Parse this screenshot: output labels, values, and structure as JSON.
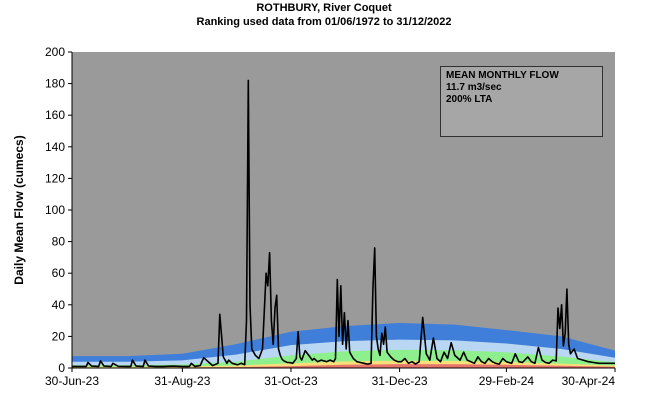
{
  "chart_data": {
    "type": "line",
    "title": "ROTHBURY, River Coquet",
    "subtitle": "Ranking used data from 01/06/1972 to 31/12/2022",
    "xlabel": "",
    "ylabel": "Daily Mean Flow (cumecs)",
    "ylim": [
      0,
      200
    ],
    "yticks": [
      0,
      20,
      40,
      60,
      80,
      100,
      120,
      140,
      160,
      180,
      200
    ],
    "xlim": [
      "2023-06-30",
      "2024-04-30"
    ],
    "xtick_labels": [
      "30-Jun-23",
      "31-Aug-23",
      "31-Oct-23",
      "31-Dec-23",
      "29-Feb-24",
      "30-Apr-24"
    ],
    "xtick_dates": [
      "2023-06-30",
      "2023-08-31",
      "2023-10-31",
      "2023-12-31",
      "2024-02-29",
      "2024-04-30"
    ],
    "background_color": "#9a9a9a",
    "line_color": "#000000",
    "grid": false,
    "bands": {
      "dates": [
        "2023-06-30",
        "2023-07-31",
        "2023-08-31",
        "2023-09-30",
        "2023-10-31",
        "2023-11-30",
        "2023-12-31",
        "2024-01-31",
        "2024-02-29",
        "2024-03-31",
        "2024-04-30"
      ],
      "layers": [
        {
          "color": "#e8736a",
          "values": [
            0.3,
            0.3,
            0.4,
            0.6,
            1.2,
            2.0,
            2.5,
            2.4,
            2.0,
            1.4,
            0.8
          ]
        },
        {
          "color": "#f5e07a",
          "values": [
            0.8,
            0.8,
            1.0,
            1.6,
            3.0,
            4.2,
            4.6,
            4.4,
            3.8,
            2.8,
            1.6
          ]
        },
        {
          "color": "#8ef08c",
          "values": [
            1.8,
            1.8,
            2.2,
            4.0,
            8.0,
            10.5,
            11.5,
            11.2,
            10.0,
            7.2,
            3.6
          ]
        },
        {
          "color": "#b9d7f2",
          "values": [
            4.0,
            4.0,
            4.8,
            8.5,
            14.5,
            17.0,
            18.0,
            17.5,
            15.5,
            12.0,
            6.5
          ]
        },
        {
          "color": "#3f7fd9",
          "values": [
            7.5,
            7.5,
            9.0,
            15.0,
            23.0,
            26.5,
            28.5,
            27.5,
            24.0,
            20.0,
            11.0
          ]
        }
      ]
    },
    "series": [
      {
        "dates": [
          "2023-06-30",
          "2023-07-01",
          "2023-07-05",
          "2023-07-08",
          "2023-07-09",
          "2023-07-11",
          "2023-07-15",
          "2023-07-16",
          "2023-07-18",
          "2023-07-22",
          "2023-07-23",
          "2023-07-26",
          "2023-07-31",
          "2023-08-02",
          "2023-08-03",
          "2023-08-05",
          "2023-08-09",
          "2023-08-10",
          "2023-08-12",
          "2023-08-16",
          "2023-08-20",
          "2023-08-26",
          "2023-08-31",
          "2023-09-04",
          "2023-09-05",
          "2023-09-07",
          "2023-09-10",
          "2023-09-12",
          "2023-09-17",
          "2023-09-20",
          "2023-09-21",
          "2023-09-23",
          "2023-09-25",
          "2023-09-26",
          "2023-09-28",
          "2023-10-01",
          "2023-10-03",
          "2023-10-05",
          "2023-10-06",
          "2023-10-07",
          "2023-10-08",
          "2023-10-09",
          "2023-10-11",
          "2023-10-13",
          "2023-10-15",
          "2023-10-17",
          "2023-10-18",
          "2023-10-19",
          "2023-10-20",
          "2023-10-21",
          "2023-10-22",
          "2023-10-23",
          "2023-10-24",
          "2023-10-25",
          "2023-10-26",
          "2023-10-27",
          "2023-10-28",
          "2023-10-29",
          "2023-10-30",
          "2023-11-01",
          "2023-11-03",
          "2023-11-04",
          "2023-11-05",
          "2023-11-06",
          "2023-11-08",
          "2023-11-10",
          "2023-11-12",
          "2023-11-13",
          "2023-11-15",
          "2023-11-17",
          "2023-11-20",
          "2023-11-22",
          "2023-11-24",
          "2023-11-25",
          "2023-11-26",
          "2023-11-27",
          "2023-11-28",
          "2023-11-29",
          "2023-11-30",
          "2023-12-01",
          "2023-12-02",
          "2023-12-03",
          "2023-12-05",
          "2023-12-07",
          "2023-12-09",
          "2023-12-11",
          "2023-12-13",
          "2023-12-15",
          "2023-12-16",
          "2023-12-17",
          "2023-12-18",
          "2023-12-19",
          "2023-12-20",
          "2023-12-21",
          "2023-12-22",
          "2023-12-23",
          "2023-12-24",
          "2023-12-26",
          "2023-12-28",
          "2023-12-30",
          "2024-01-01",
          "2024-01-03",
          "2024-01-05",
          "2024-01-07",
          "2024-01-09",
          "2024-01-11",
          "2024-01-13",
          "2024-01-15",
          "2024-01-17",
          "2024-01-19",
          "2024-01-21",
          "2024-01-23",
          "2024-01-25",
          "2024-01-27",
          "2024-01-29",
          "2024-01-31",
          "2024-02-03",
          "2024-02-05",
          "2024-02-07",
          "2024-02-09",
          "2024-02-11",
          "2024-02-13",
          "2024-02-15",
          "2024-02-17",
          "2024-02-19",
          "2024-02-21",
          "2024-02-23",
          "2024-02-25",
          "2024-02-27",
          "2024-02-29",
          "2024-03-03",
          "2024-03-05",
          "2024-03-07",
          "2024-03-09",
          "2024-03-12",
          "2024-03-14",
          "2024-03-16",
          "2024-03-18",
          "2024-03-20",
          "2024-03-22",
          "2024-03-24",
          "2024-03-26",
          "2024-03-28",
          "2024-03-29",
          "2024-03-30",
          "2024-03-31",
          "2024-04-01",
          "2024-04-02",
          "2024-04-03",
          "2024-04-04",
          "2024-04-05",
          "2024-04-07",
          "2024-04-09",
          "2024-04-12",
          "2024-04-15",
          "2024-04-18",
          "2024-04-21",
          "2024-04-24",
          "2024-04-27",
          "2024-04-30"
        ],
        "values": [
          1.0,
          1.0,
          1.0,
          1.0,
          3.5,
          1.2,
          1.0,
          4.5,
          1.2,
          1.0,
          3.0,
          1.1,
          1.0,
          1.0,
          5.0,
          1.2,
          1.0,
          5.0,
          1.2,
          1.0,
          1.0,
          1.2,
          1.0,
          1.0,
          3.0,
          1.0,
          1.5,
          6.5,
          1.5,
          3.0,
          34.0,
          7.0,
          3.0,
          5.0,
          3.0,
          2.0,
          3.0,
          2.0,
          30.0,
          182.0,
          40.0,
          12.0,
          8.0,
          6.0,
          12.0,
          60.0,
          52.0,
          73.0,
          30.0,
          15.0,
          38.0,
          46.0,
          12.0,
          8.0,
          5.5,
          4.5,
          4.0,
          3.5,
          3.5,
          3.0,
          6.0,
          23.0,
          7.0,
          5.0,
          11.0,
          8.0,
          5.0,
          6.0,
          4.0,
          5.0,
          4.0,
          5.0,
          4.0,
          6.0,
          56.0,
          20.0,
          52.0,
          15.0,
          35.0,
          12.0,
          30.0,
          10.0,
          6.0,
          4.0,
          3.5,
          3.0,
          2.5,
          3.0,
          50.0,
          76.0,
          20.0,
          12.0,
          8.0,
          22.0,
          15.0,
          26.0,
          10.0,
          7.0,
          5.0,
          4.0,
          4.0,
          6.0,
          3.0,
          4.0,
          2.5,
          4.0,
          32.0,
          9.0,
          5.0,
          19.0,
          6.0,
          4.0,
          10.0,
          6.0,
          16.0,
          8.0,
          5.0,
          10.0,
          5.0,
          4.0,
          3.0,
          7.0,
          4.0,
          3.0,
          6.0,
          4.0,
          3.0,
          2.5,
          6.0,
          4.0,
          3.0,
          9.0,
          4.0,
          3.5,
          7.0,
          4.0,
          3.0,
          13.0,
          5.0,
          3.5,
          3.0,
          5.0,
          4.5,
          38.0,
          25.0,
          40.0,
          14.0,
          22.0,
          50.0,
          15.0,
          9.0,
          12.0,
          6.0,
          5.0,
          4.0,
          3.5,
          3.0,
          3.0,
          3.0,
          3.0
        ]
      }
    ],
    "annotation": {
      "title": "MEAN MONTHLY FLOW",
      "value": "11.7 m3/sec",
      "lta": "200% LTA"
    }
  }
}
